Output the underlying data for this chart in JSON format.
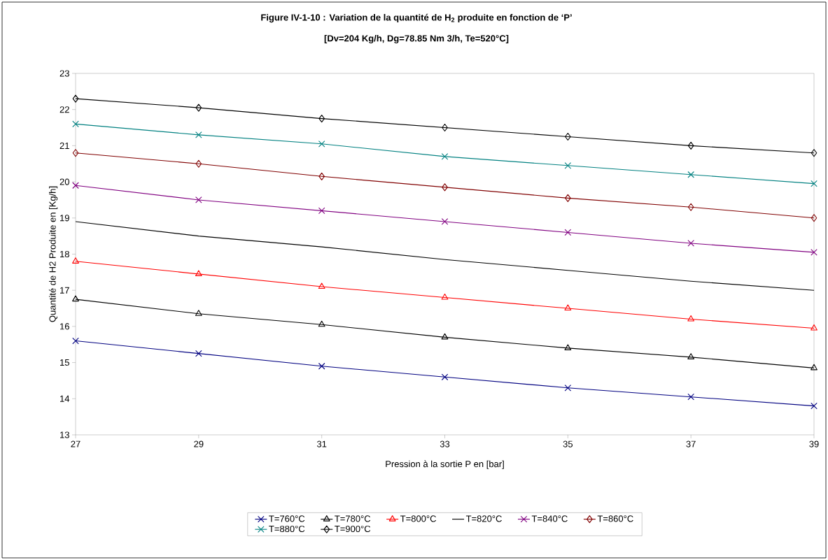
{
  "chart_data": {
    "type": "line",
    "title": "Figure IV-1-10 : Variation de la quantité de H$_{2}$ produite en fonction de ‘P’",
    "subtitle": "[Dv=204 Kg/h, Dg=78.85 Nm 3/h, Te=520°C]",
    "xlabel": "Pression à la sortie P en [bar]",
    "ylabel": "Quantité de H2 Produite en [Kg/h]",
    "x": [
      27,
      29,
      31,
      33,
      35,
      37,
      39
    ],
    "xlim": [
      27,
      39
    ],
    "xticks": [
      27,
      29,
      31,
      33,
      35,
      37,
      39
    ],
    "ylim": [
      13,
      23
    ],
    "yticks": [
      13,
      14,
      15,
      16,
      17,
      18,
      19,
      20,
      21,
      22,
      23
    ],
    "grid": false,
    "legend": "bottom",
    "series": [
      {
        "name": "T=760°C",
        "color": "#000080",
        "marker": "cross",
        "values": [
          15.6,
          15.25,
          14.9,
          14.6,
          14.3,
          14.05,
          13.8
        ]
      },
      {
        "name": "T=780°C",
        "color": "#000000",
        "marker": "triangle",
        "values": [
          16.75,
          16.35,
          16.05,
          15.7,
          15.4,
          15.15,
          14.85
        ]
      },
      {
        "name": "T=800°C",
        "color": "#ff0000",
        "marker": "triangle",
        "values": [
          17.8,
          17.45,
          17.1,
          16.8,
          16.5,
          16.2,
          15.95
        ]
      },
      {
        "name": "T=820°C",
        "color": "#000000",
        "marker": "none",
        "values": [
          18.9,
          18.5,
          18.2,
          17.85,
          17.55,
          17.25,
          17.0
        ]
      },
      {
        "name": "T=840°C",
        "color": "#800080",
        "marker": "cross",
        "values": [
          19.9,
          19.5,
          19.2,
          18.9,
          18.6,
          18.3,
          18.05
        ]
      },
      {
        "name": "T=860°C",
        "color": "#800000",
        "marker": "diamond",
        "values": [
          20.8,
          20.5,
          20.15,
          19.85,
          19.55,
          19.3,
          19.0
        ]
      },
      {
        "name": "T=880°C",
        "color": "#008080",
        "marker": "cross",
        "values": [
          21.6,
          21.3,
          21.05,
          20.7,
          20.45,
          20.2,
          19.95
        ]
      },
      {
        "name": "T=900°C",
        "color": "#000000",
        "marker": "diamond",
        "values": [
          22.3,
          22.05,
          21.75,
          21.5,
          21.25,
          21.0,
          20.8
        ]
      }
    ]
  }
}
